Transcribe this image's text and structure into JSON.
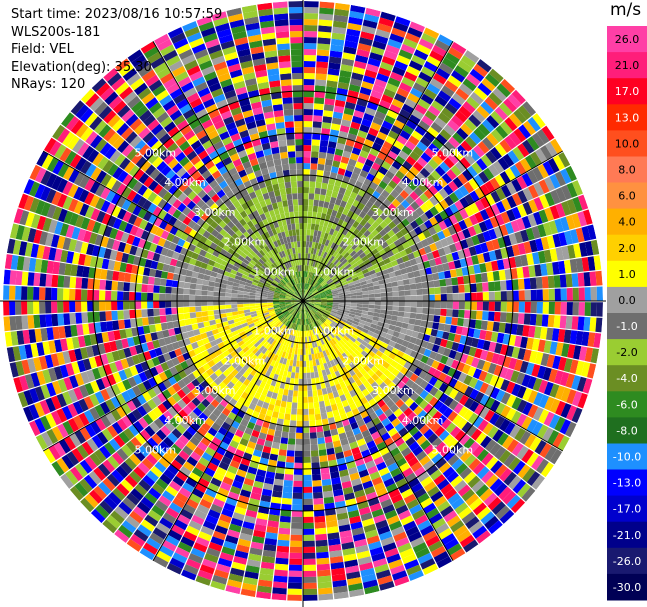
{
  "header": {
    "start_time": "Start time: 2023/08/16 10:57:59",
    "instrument": "WLS200s-181",
    "field": "Field: VEL",
    "elevation": "Elevation(deg): 35.30",
    "nrays": "NRays: 120"
  },
  "ppi": {
    "range_rings_km": [
      1.0,
      2.0,
      3.0,
      4.0,
      5.0
    ],
    "ring_labels": [
      "1.00km",
      "2.00km",
      "3.00km",
      "4.00km",
      "5.00km"
    ],
    "nrays": 120,
    "max_range_km": 7.2
  },
  "colorbar": {
    "unit": "m/s",
    "tick_labels": [
      "26.0",
      "21.0",
      "17.0",
      "13.0",
      "10.0",
      "8.0",
      "6.0",
      "4.0",
      "2.0",
      "1.0",
      "0.0",
      "-1.0",
      "-2.0",
      "-4.0",
      "-6.0",
      "-8.0",
      "-10.0",
      "-13.0",
      "-17.0",
      "-21.0",
      "-26.0",
      "-30.0"
    ],
    "colors": [
      "#ff3fa6",
      "#ff1e7a",
      "#ff0022",
      "#ff2a00",
      "#ff4f1e",
      "#ff7a55",
      "#ff9140",
      "#ffb000",
      "#ffd000",
      "#ffff00",
      "#a0a0a0",
      "#6e6e6e",
      "#9acd32",
      "#6b8e23",
      "#2e8b20",
      "#1f6f1f",
      "#1e90ff",
      "#0000ff",
      "#0000cd",
      "#00008b",
      "#191970",
      "#000055"
    ]
  }
}
